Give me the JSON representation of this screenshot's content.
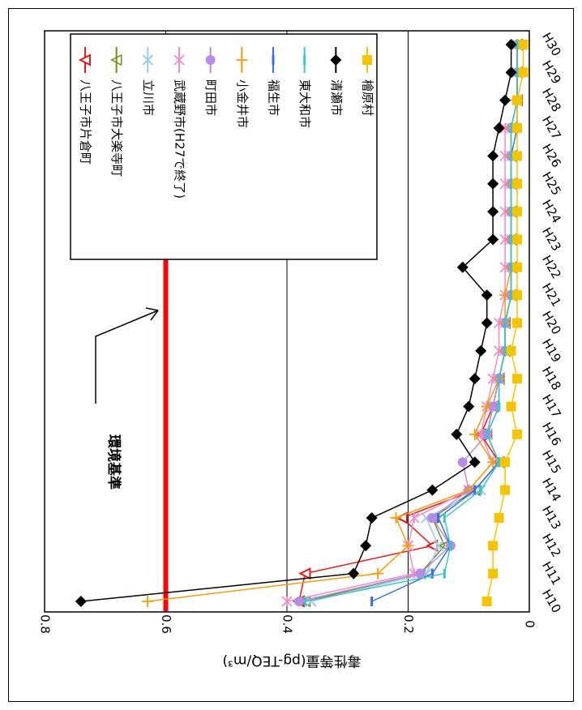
{
  "chart_data": {
    "type": "line",
    "orientation": "rotated-90-clockwise",
    "ylabel": "毒性等量(pg-TEQ/m³)",
    "ylim": [
      0,
      0.8
    ],
    "yticks": [
      "0",
      "0.2",
      "0.4",
      "0.6",
      "0.8"
    ],
    "grid": "horizontal",
    "legend_position": "top-right",
    "categories": [
      "H10",
      "H11",
      "H12",
      "H13",
      "H14",
      "H15",
      "H16",
      "H17",
      "H18",
      "H19",
      "H20",
      "H21",
      "H22",
      "H23",
      "H24",
      "H25",
      "H26",
      "H27",
      "H28",
      "H29",
      "H30"
    ],
    "reference_line": {
      "label": "環境基準",
      "value": 0.6,
      "color": "#ff0000"
    },
    "series": [
      {
        "name": "八王子市片倉町",
        "color": "#e31a1c",
        "marker": "triangle",
        "values": [
          0.38,
          0.37,
          0.16,
          0.21,
          0.09,
          0.05,
          0.08,
          0.06,
          0.05,
          0.04,
          0.04,
          0.03,
          0.03,
          0.03,
          0.03,
          0.03,
          0.03,
          0.03,
          0.02,
          0.02,
          0.02
        ]
      },
      {
        "name": "八王子市大楽寺町",
        "color": "#6b8e23",
        "marker": "triangle-open",
        "values": [
          0.37,
          0.18,
          0.14,
          0.16,
          0.09,
          0.05,
          0.07,
          0.06,
          0.05,
          0.04,
          0.04,
          0.03,
          0.03,
          0.03,
          0.03,
          0.03,
          0.03,
          0.03,
          0.02,
          0.02,
          0.02
        ]
      },
      {
        "name": "立川市",
        "color": "#9ec9e8",
        "marker": "x",
        "values": [
          0.36,
          0.17,
          0.15,
          0.17,
          0.08,
          0.05,
          0.07,
          0.06,
          0.05,
          0.04,
          0.04,
          0.03,
          0.03,
          0.03,
          0.03,
          0.03,
          0.03,
          0.03,
          0.02,
          0.02,
          0.02
        ]
      },
      {
        "name": "武蔵野市(H27で終了)",
        "color": "#f28cc8",
        "marker": "asterisk",
        "values": [
          0.4,
          0.19,
          0.2,
          0.19,
          0.1,
          0.06,
          0.08,
          0.07,
          0.06,
          0.05,
          0.05,
          0.04,
          0.04,
          0.04,
          0.04,
          0.04,
          0.04,
          0.04,
          null,
          null,
          null
        ]
      },
      {
        "name": "町田市",
        "color": "#b88ce6",
        "marker": "circle",
        "values": [
          0.38,
          0.18,
          0.13,
          0.16,
          0.1,
          0.11,
          0.07,
          0.06,
          0.05,
          0.04,
          0.04,
          0.03,
          0.03,
          0.03,
          0.03,
          0.03,
          0.03,
          0.03,
          0.02,
          0.02,
          0.02
        ]
      },
      {
        "name": "小金井市",
        "color": "#f39c12",
        "marker": "plus",
        "values": [
          0.63,
          0.25,
          0.2,
          0.22,
          0.1,
          0.06,
          0.09,
          0.07,
          0.05,
          0.04,
          0.04,
          0.04,
          0.03,
          0.03,
          0.03,
          0.03,
          0.03,
          0.03,
          0.02,
          0.02,
          0.02
        ]
      },
      {
        "name": "福生市",
        "color": "#3a6fe0",
        "marker": "dash",
        "values": [
          0.26,
          0.16,
          0.13,
          0.15,
          0.09,
          0.05,
          0.07,
          0.05,
          0.05,
          0.04,
          0.04,
          0.03,
          0.03,
          0.03,
          0.03,
          0.03,
          0.03,
          0.02,
          0.02,
          0.02,
          0.02
        ]
      },
      {
        "name": "東大和市",
        "color": "#40c4c4",
        "marker": "dash",
        "values": [
          0.37,
          0.14,
          0.13,
          0.14,
          0.08,
          0.05,
          0.07,
          0.05,
          0.05,
          0.04,
          0.04,
          0.03,
          0.03,
          0.03,
          0.03,
          0.03,
          0.03,
          0.03,
          0.02,
          0.02,
          0.02
        ]
      },
      {
        "name": "清瀬市",
        "color": "#000000",
        "marker": "diamond",
        "values": [
          0.74,
          0.29,
          0.27,
          0.26,
          0.16,
          0.09,
          0.12,
          0.1,
          0.09,
          0.08,
          0.07,
          0.07,
          0.11,
          0.06,
          0.06,
          0.06,
          0.06,
          0.05,
          0.04,
          0.03,
          0.03
        ]
      },
      {
        "name": "檜原村",
        "color": "#f5c400",
        "marker": "square",
        "values": [
          0.07,
          0.06,
          0.06,
          0.05,
          0.04,
          0.04,
          0.02,
          0.03,
          0.02,
          0.03,
          0.02,
          0.02,
          0.02,
          0.02,
          0.02,
          0.02,
          0.02,
          0.02,
          0.02,
          0.01,
          0.01
        ]
      }
    ]
  }
}
